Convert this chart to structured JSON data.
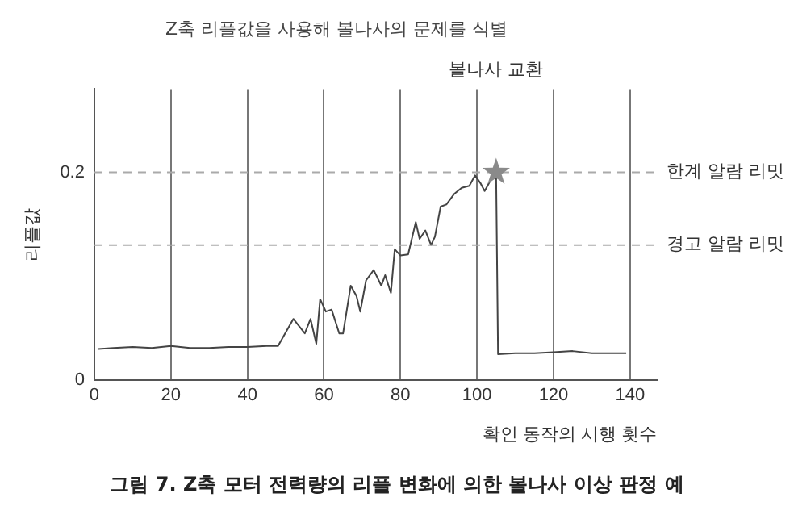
{
  "chart_data": {
    "type": "line",
    "title": "Z축 리플값을 사용해 볼나사의 문제를 식별",
    "xlabel": "확인 동작의 시행 횟수",
    "ylabel": "리플값",
    "xlim": [
      0,
      147
    ],
    "xticks": [
      0,
      20,
      40,
      60,
      80,
      100,
      120,
      140
    ],
    "ylim": [
      0,
      0.28
    ],
    "yticks": [
      0,
      0.2
    ],
    "grid": "x",
    "series": [
      {
        "color": "#444444",
        "marker": "none",
        "x": [
          1,
          5,
          10,
          15,
          20,
          25,
          30,
          35,
          40,
          45,
          48,
          52,
          55,
          56.5,
          58,
          59,
          60.5,
          62,
          64,
          65,
          67,
          68.5,
          69.5,
          71,
          73,
          75,
          76,
          77.5,
          78.5,
          80,
          82,
          84,
          85,
          86.5,
          88,
          89,
          90.5,
          92,
          94,
          96,
          98,
          99.5,
          101,
          102,
          103.5,
          105,
          105.5,
          110,
          115,
          120,
          125,
          130,
          135,
          139
        ],
        "values": [
          0.03,
          0.031,
          0.032,
          0.031,
          0.033,
          0.031,
          0.031,
          0.032,
          0.032,
          0.033,
          0.033,
          0.059,
          0.045,
          0.059,
          0.035,
          0.078,
          0.066,
          0.068,
          0.045,
          0.045,
          0.091,
          0.081,
          0.066,
          0.096,
          0.106,
          0.091,
          0.101,
          0.084,
          0.126,
          0.12,
          0.121,
          0.152,
          0.136,
          0.144,
          0.13,
          0.138,
          0.167,
          0.169,
          0.179,
          0.185,
          0.187,
          0.197,
          0.189,
          0.182,
          0.192,
          0.197,
          0.025,
          0.026,
          0.026,
          0.027,
          0.028,
          0.026,
          0.026,
          0.026
        ]
      },
      {
        "type": "scatter",
        "color": "#8a8a8a",
        "marker": "star",
        "x": [
          105
        ],
        "values": [
          0.2
        ]
      }
    ],
    "ref_lines": [
      {
        "axis": "y",
        "value": 0.2,
        "label": "한계 알람 리밋",
        "color": "#aaaaaa",
        "line_style": "dashed"
      },
      {
        "axis": "y",
        "value": 0.13,
        "label": "경고 알람 리밋",
        "color": "#aaaaaa",
        "line_style": "dashed"
      }
    ],
    "annotations": [
      "볼나사 교환",
      "그림 7. Z축 모터 전력량의 리플 변화에 의한 볼나사 이상 판정 예"
    ]
  }
}
